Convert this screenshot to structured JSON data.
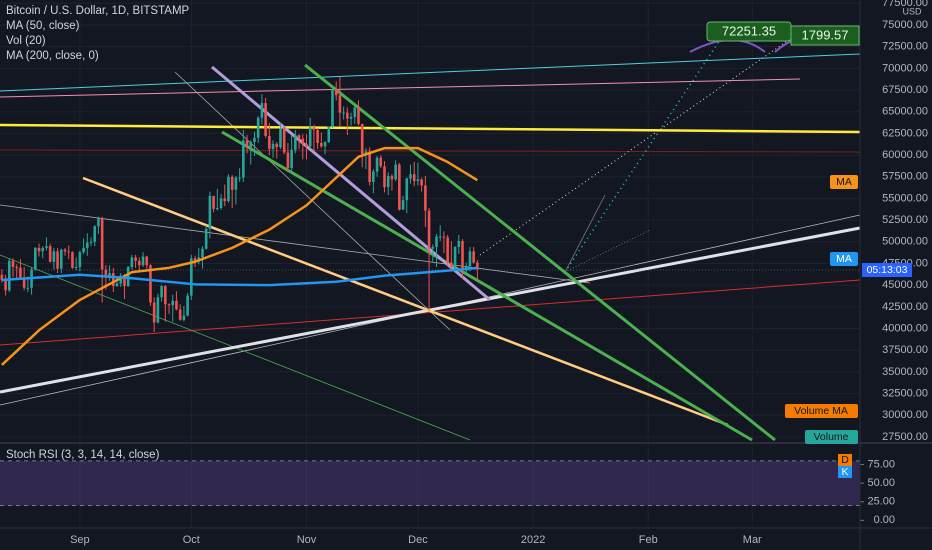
{
  "chart_data": {
    "type": "candlestick",
    "title": "Bitcoin / U.S. Dollar, 1D, BITSTAMP",
    "indicators": [
      "MA (50, close)",
      "Vol (20)",
      "MA (200, close, 0)"
    ],
    "currency": "USD",
    "up_color": "#26a69a",
    "down_color": "#ef5350",
    "open": [
      46200,
      45600,
      44400,
      47800,
      47100,
      47000,
      45900,
      44700,
      44700,
      46800,
      49300,
      48900,
      49300,
      49500,
      47700,
      48900,
      46900,
      49100,
      48900,
      48800,
      47000,
      47100,
      48800,
      49300,
      49900,
      50000,
      51800,
      52700,
      46800,
      46100,
      46400,
      44900,
      45200,
      46100,
      44900,
      47100,
      48200,
      47800,
      47300,
      48300,
      47300,
      43000,
      40700,
      43600,
      44900,
      42800,
      42700,
      43200,
      42200,
      41000,
      41500,
      43800,
      48100,
      47700,
      48200,
      49200,
      51500,
      55300,
      53800,
      53900,
      55000,
      54700,
      57500,
      56000,
      57400,
      57400,
      61700,
      60900,
      61500,
      62000,
      64300,
      66000,
      62200,
      60700,
      61300,
      60900,
      63100,
      60300,
      58500,
      60600,
      62300,
      61900,
      61300,
      61000,
      63200,
      62900,
      61400,
      61000,
      61500,
      63300,
      67600,
      66900,
      64900,
      64900,
      64200,
      64400,
      65500,
      63600,
      60100,
      60400,
      56900,
      58100,
      59700,
      58700,
      56300,
      57600,
      57200,
      58900,
      53700,
      54800,
      57300,
      57800,
      57000,
      57200,
      56500,
      53600,
      49200,
      49400,
      50600,
      50600,
      50500,
      47600,
      47100,
      49400,
      50100,
      46700,
      47200,
      48900,
      47600
    ],
    "high": [
      46800,
      46200,
      48100,
      48100,
      47400,
      48000,
      47100,
      46000,
      47000,
      49400,
      49800,
      49500,
      50500,
      49800,
      49300,
      49300,
      49200,
      49300,
      49600,
      48900,
      48200,
      49000,
      50400,
      51000,
      50500,
      51900,
      52900,
      52900,
      47300,
      47300,
      47000,
      45900,
      46400,
      46300,
      47200,
      48500,
      48500,
      48200,
      48800,
      48400,
      47400,
      43600,
      44000,
      45000,
      45000,
      42900,
      43900,
      44300,
      42800,
      42600,
      44100,
      48500,
      48400,
      49300,
      49500,
      51900,
      55800,
      55300,
      56100,
      55500,
      56600,
      57800,
      57700,
      57600,
      58500,
      62900,
      62300,
      61700,
      62700,
      64500,
      67000,
      66600,
      63700,
      61700,
      61500,
      63700,
      63300,
      61400,
      62400,
      62900,
      62400,
      62400,
      62400,
      64300,
      63500,
      63100,
      62600,
      61600,
      63300,
      67800,
      68500,
      69000,
      65600,
      65500,
      64900,
      65600,
      66300,
      63600,
      60800,
      60900,
      58400,
      59900,
      60000,
      59300,
      58000,
      57800,
      59400,
      59100,
      55300,
      57400,
      58900,
      59200,
      59100,
      57400,
      57600,
      53900,
      49700,
      50900,
      51900,
      51200,
      50800,
      50100,
      49500,
      50800,
      50300,
      47600,
      49400,
      49400,
      47900
    ],
    "low": [
      45300,
      43800,
      44200,
      45900,
      45600,
      45700,
      44400,
      44200,
      43900,
      46700,
      48300,
      48100,
      49000,
      47600,
      46800,
      46400,
      46400,
      48400,
      48000,
      46900,
      46700,
      46600,
      48600,
      48400,
      49500,
      49500,
      50900,
      43000,
      44500,
      45500,
      44200,
      44800,
      44800,
      43400,
      44800,
      46800,
      47000,
      46700,
      47100,
      46900,
      42600,
      39600,
      40600,
      43100,
      40800,
      41700,
      40800,
      42100,
      40900,
      40800,
      41400,
      43300,
      47100,
      47400,
      46900,
      49100,
      50400,
      53400,
      53600,
      53700,
      54100,
      54500,
      53900,
      54300,
      56900,
      56900,
      60200,
      58900,
      59900,
      61400,
      63500,
      62000,
      60000,
      59700,
      59600,
      60700,
      60100,
      58000,
      57900,
      60200,
      60700,
      59500,
      59500,
      60700,
      60400,
      60700,
      60800,
      60100,
      61400,
      63100,
      66300,
      63300,
      64100,
      62300,
      63400,
      63600,
      63400,
      58600,
      58400,
      56500,
      55600,
      57500,
      58500,
      55700,
      55400,
      55900,
      57000,
      53600,
      53700,
      53300,
      56700,
      56400,
      56500,
      55800,
      51700,
      42000,
      47700,
      47100,
      50100,
      48700,
      47300,
      46900,
      46800,
      48600,
      45700,
      46300,
      46600,
      47500,
      45600
    ],
    "close": [
      45600,
      44400,
      47800,
      47100,
      47000,
      45900,
      44700,
      44700,
      46800,
      49300,
      48900,
      49300,
      49500,
      47700,
      48900,
      46900,
      49100,
      48900,
      48800,
      47000,
      47100,
      48800,
      49300,
      49900,
      50000,
      51800,
      52700,
      46800,
      46100,
      46400,
      44900,
      45200,
      46100,
      44900,
      47100,
      48200,
      47800,
      47300,
      48300,
      47300,
      43000,
      40700,
      43600,
      44900,
      42800,
      42700,
      43200,
      42200,
      41000,
      41500,
      43800,
      48100,
      47700,
      48200,
      49200,
      51500,
      55300,
      53800,
      53900,
      55000,
      54700,
      57500,
      56000,
      57400,
      57400,
      61700,
      60900,
      61500,
      62000,
      64300,
      66000,
      62200,
      60700,
      61300,
      60900,
      63100,
      60300,
      58500,
      60600,
      62300,
      61900,
      61300,
      61000,
      63200,
      62900,
      61400,
      61000,
      61500,
      63300,
      67600,
      66900,
      64900,
      64900,
      64200,
      64400,
      65500,
      63600,
      60100,
      60400,
      56900,
      58100,
      59700,
      58700,
      56300,
      57600,
      57200,
      58900,
      53700,
      54800,
      57300,
      57800,
      57000,
      57200,
      56500,
      53600,
      49200,
      49400,
      50600,
      50600,
      50500,
      47600,
      47100,
      49400,
      50100,
      46700,
      47200,
      48900,
      47600,
      46800
    ],
    "series": [
      {
        "name": "MA",
        "color": "#f7931a",
        "x": [
          0,
          10,
          21,
          35,
          45,
          52,
          62,
          72,
          82,
          90,
          96,
          103,
          112,
          120,
          128
        ],
        "values": [
          35800,
          39800,
          43300,
          46500,
          47000,
          47700,
          49300,
          51400,
          54200,
          57400,
          59800,
          60800,
          60800,
          59200,
          57100
        ]
      },
      {
        "name": "MA",
        "color": "#2196f3",
        "x": [
          0,
          21,
          35,
          52,
          72,
          90,
          103,
          112,
          122,
          128
        ],
        "values": [
          45600,
          46200,
          45800,
          45100,
          45000,
          45400,
          46100,
          46400,
          46750,
          47000
        ]
      }
    ],
    "countdown": "05:13:03",
    "volume_labels": [
      "Volume MA",
      "Volume"
    ],
    "annotations": [
      "72251.35",
      "1799.57"
    ],
    "xlim": [
      -0.5,
      231
    ],
    "xticks": [
      {
        "value": 21,
        "label": "Sep"
      },
      {
        "value": 51,
        "label": "Oct"
      },
      {
        "value": 82,
        "label": "Nov"
      },
      {
        "value": 112,
        "label": "Dec"
      },
      {
        "value": 143,
        "label": "2022"
      },
      {
        "value": 174,
        "label": "Feb"
      },
      {
        "value": 202,
        "label": "Mar"
      }
    ],
    "ylim": [
      27150,
      77880
    ],
    "yticks": [
      {
        "value": 27500,
        "label": "27500.00"
      },
      {
        "value": 30000,
        "label": "30000.00"
      },
      {
        "value": 32500,
        "label": "32500.00"
      },
      {
        "value": 35000,
        "label": "35000.00"
      },
      {
        "value": 37500,
        "label": "37500.00"
      },
      {
        "value": 40000,
        "label": "40000.00"
      },
      {
        "value": 42500,
        "label": "42500.00"
      },
      {
        "value": 45000,
        "label": "45000.00"
      },
      {
        "value": 47500,
        "label": "47500.00"
      },
      {
        "value": 50000,
        "label": "50000.00"
      },
      {
        "value": 52500,
        "label": "52500.00"
      },
      {
        "value": 55000,
        "label": "55000.00"
      },
      {
        "value": 57500,
        "label": "57500.00"
      },
      {
        "value": 60000,
        "label": "60000.00"
      },
      {
        "value": 62500,
        "label": "62500.00"
      },
      {
        "value": 65000,
        "label": "65000.00"
      },
      {
        "value": 67500,
        "label": "67500.00"
      },
      {
        "value": 70000,
        "label": "70000.00"
      },
      {
        "value": 72500,
        "label": "72500.00"
      },
      {
        "value": 75000,
        "label": "75000.00"
      },
      {
        "value": 77500,
        "label": "77500.00"
      }
    ],
    "grid": true
  },
  "rsi_pane": {
    "title": "Stoch RSI (3, 3, 14, 14, close)",
    "legend": [
      "D",
      "K"
    ],
    "ylim": [
      -9,
      100
    ],
    "yticks": [
      {
        "value": 0,
        "label": "0.00"
      },
      {
        "value": 25,
        "label": "25.00"
      },
      {
        "value": 50,
        "label": "50.00"
      },
      {
        "value": 75,
        "label": "75.00"
      }
    ],
    "band": [
      20,
      80
    ]
  }
}
